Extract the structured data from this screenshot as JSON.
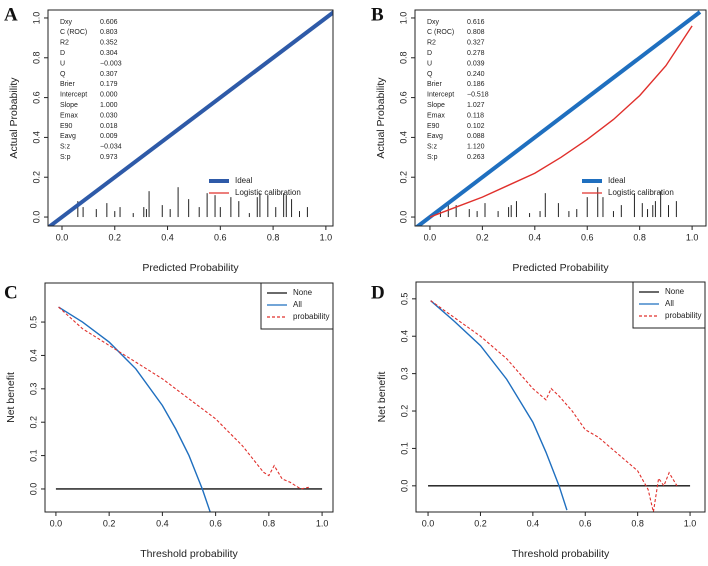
{
  "chart_data": [
    {
      "type": "calibration",
      "label": "A",
      "x_label": "Predicted Probability",
      "y_label": "Actual Probability",
      "xlim": [
        -0.053,
        1.027
      ],
      "ylim": [
        -0.045,
        1.04
      ],
      "xticks": [
        {
          "value": 0,
          "label": "0.0"
        },
        0.2,
        0.4,
        0.6,
        0.8,
        {
          "value": 1,
          "label": "1.0"
        }
      ],
      "yticks": [
        {
          "value": 0,
          "label": "0.0"
        },
        0.2,
        0.4,
        0.6,
        0.8,
        {
          "value": 1,
          "label": "1.0"
        }
      ],
      "stats": {
        "labels": [
          "Dxy",
          "C (ROC)",
          "R2",
          "D",
          "U",
          "Q",
          "Brier",
          "Intercept",
          "Slope",
          "Emax",
          "E90",
          "Eavg",
          "S:z",
          "S:p"
        ],
        "values": [
          "0.606",
          "0.803",
          "0.352",
          "0.304",
          "−0.003",
          "0.307",
          "0.179",
          "0.000",
          "1.000",
          "0.030",
          "0.018",
          "0.009",
          "−0.034",
          "0.973"
        ]
      },
      "legend": "lower right",
      "legend_box": false,
      "series": [
        {
          "name": "Logistic calibration",
          "color": "#e0302c",
          "x": [
            -0.05,
            1.03
          ],
          "values": [
            -0.05,
            1.03
          ]
        },
        {
          "name": "Ideal",
          "color": "#2e5aa8",
          "x": [
            -0.05,
            1.03
          ],
          "values": [
            -0.05,
            1.03
          ]
        }
      ],
      "spikes": {
        "color": "#222",
        "x": [
          0.06,
          0.08,
          0.13,
          0.17,
          0.2,
          0.22,
          0.27,
          0.31,
          0.32,
          0.33,
          0.38,
          0.41,
          0.44,
          0.48,
          0.52,
          0.55,
          0.58,
          0.6,
          0.64,
          0.67,
          0.71,
          0.74,
          0.75,
          0.78,
          0.81,
          0.84,
          0.85,
          0.87,
          0.9,
          0.93
        ],
        "values": [
          0.08,
          0.05,
          0.04,
          0.07,
          0.03,
          0.05,
          0.02,
          0.05,
          0.04,
          0.13,
          0.06,
          0.04,
          0.15,
          0.09,
          0.05,
          0.12,
          0.11,
          0.05,
          0.1,
          0.08,
          0.02,
          0.1,
          0.12,
          0.11,
          0.05,
          0.12,
          0.11,
          0.09,
          0.03,
          0.05
        ]
      }
    },
    {
      "type": "calibration",
      "label": "B",
      "x_label": "Predicted Probability",
      "y_label": "Actual Probability",
      "xlim": [
        -0.057,
        1.053
      ],
      "ylim": [
        -0.045,
        1.04
      ],
      "xticks": [
        {
          "value": 0,
          "label": "0.0"
        },
        0.2,
        0.4,
        0.6,
        0.8,
        {
          "value": 1,
          "label": "1.0"
        }
      ],
      "yticks": [
        {
          "value": 0,
          "label": "0.0"
        },
        0.2,
        0.4,
        0.6,
        0.8,
        {
          "value": 1,
          "label": "1.0"
        }
      ],
      "stats": {
        "labels": [
          "Dxy",
          "C (ROC)",
          "R2",
          "D",
          "U",
          "Q",
          "Brier",
          "Intercept",
          "Slope",
          "Emax",
          "E90",
          "Eavg",
          "S:z",
          "S:p"
        ],
        "values": [
          "0.616",
          "0.808",
          "0.327",
          "0.278",
          "0.039",
          "0.240",
          "0.186",
          "−0.518",
          "1.027",
          "0.118",
          "0.102",
          "0.088",
          "1.120",
          "0.263"
        ]
      },
      "legend": "lower right",
      "legend_box": false,
      "series": [
        {
          "name": "Ideal",
          "color": "#1f6fbf",
          "x": [
            -0.05,
            1.03
          ],
          "values": [
            -0.05,
            1.03
          ]
        },
        {
          "name": "Logistic calibration",
          "color": "#e0302c",
          "x": [
            0,
            0.1,
            0.2,
            0.3,
            0.4,
            0.5,
            0.6,
            0.7,
            0.8,
            0.9,
            1.0
          ],
          "values": [
            0.0,
            0.05,
            0.1,
            0.16,
            0.22,
            0.3,
            0.39,
            0.49,
            0.61,
            0.76,
            0.96
          ]
        }
      ],
      "spikes": {
        "color": "#222",
        "x": [
          0.04,
          0.07,
          0.1,
          0.15,
          0.18,
          0.21,
          0.26,
          0.3,
          0.31,
          0.33,
          0.38,
          0.42,
          0.44,
          0.49,
          0.53,
          0.56,
          0.6,
          0.64,
          0.66,
          0.7,
          0.73,
          0.78,
          0.81,
          0.83,
          0.85,
          0.86,
          0.88,
          0.91,
          0.94
        ],
        "values": [
          0.03,
          0.06,
          0.06,
          0.04,
          0.03,
          0.07,
          0.03,
          0.05,
          0.06,
          0.08,
          0.02,
          0.03,
          0.12,
          0.07,
          0.03,
          0.04,
          0.1,
          0.15,
          0.1,
          0.03,
          0.06,
          0.12,
          0.07,
          0.04,
          0.06,
          0.08,
          0.13,
          0.06,
          0.08
        ]
      }
    },
    {
      "type": "decision",
      "label": "C",
      "x_label": "Threshold probability",
      "y_label": "Net benefit",
      "xlim": [
        -0.041,
        1.041
      ],
      "ylim": [
        -0.069,
        0.617
      ],
      "xticks": [
        {
          "value": 0,
          "label": "0.0"
        },
        0.2,
        0.4,
        0.6,
        0.8,
        {
          "value": 1,
          "label": "1.0"
        }
      ],
      "yticks": [
        {
          "value": 0,
          "label": "0.0"
        },
        0.1,
        0.2,
        0.3,
        0.4,
        0.5
      ],
      "legend": "upper right",
      "legend_box": true,
      "series": [
        {
          "name": "None",
          "color": "#111",
          "x": [
            0,
            1
          ],
          "values": [
            0,
            0
          ]
        },
        {
          "name": "All",
          "color": "#1f6fbf",
          "x": [
            0.01,
            0.1,
            0.2,
            0.3,
            0.4,
            0.45,
            0.5,
            0.55,
            0.58
          ],
          "values": [
            0.545,
            0.5,
            0.44,
            0.36,
            0.25,
            0.18,
            0.1,
            0.0,
            -0.07
          ]
        },
        {
          "name": "probability",
          "color": "#e0302c",
          "dashed": true,
          "x": [
            0.01,
            0.1,
            0.2,
            0.3,
            0.4,
            0.5,
            0.6,
            0.65,
            0.7,
            0.75,
            0.78,
            0.8,
            0.82,
            0.85,
            0.88,
            0.9,
            0.92,
            0.95
          ],
          "values": [
            0.545,
            0.48,
            0.43,
            0.38,
            0.33,
            0.27,
            0.21,
            0.17,
            0.13,
            0.08,
            0.05,
            0.04,
            0.07,
            0.03,
            0.02,
            0.01,
            0.0,
            0.005
          ]
        }
      ]
    },
    {
      "type": "decision",
      "label": "D",
      "x_label": "Threshold probability",
      "y_label": "Net benefit",
      "xlim": [
        -0.046,
        1.057
      ],
      "ylim": [
        -0.07,
        0.545
      ],
      "xticks": [
        {
          "value": 0,
          "label": "0.0"
        },
        0.2,
        0.4,
        0.6,
        0.8,
        {
          "value": 1,
          "label": "1.0"
        }
      ],
      "yticks": [
        {
          "value": 0,
          "label": "0.0"
        },
        0.1,
        0.2,
        0.3,
        0.4,
        0.5
      ],
      "legend": "upper right",
      "legend_box": true,
      "series": [
        {
          "name": "None",
          "color": "#111",
          "x": [
            0,
            1
          ],
          "values": [
            0,
            0
          ]
        },
        {
          "name": "All",
          "color": "#1f6fbf",
          "x": [
            0.01,
            0.1,
            0.2,
            0.3,
            0.4,
            0.45,
            0.5,
            0.53
          ],
          "values": [
            0.495,
            0.44,
            0.375,
            0.285,
            0.17,
            0.09,
            0.0,
            -0.065
          ]
        },
        {
          "name": "probability",
          "color": "#e0302c",
          "dashed": true,
          "x": [
            0.01,
            0.1,
            0.2,
            0.3,
            0.35,
            0.4,
            0.45,
            0.47,
            0.5,
            0.55,
            0.6,
            0.65,
            0.7,
            0.75,
            0.8,
            0.84,
            0.86,
            0.88,
            0.9,
            0.92,
            0.95
          ],
          "values": [
            0.495,
            0.45,
            0.4,
            0.34,
            0.3,
            0.26,
            0.23,
            0.26,
            0.24,
            0.2,
            0.15,
            0.13,
            0.1,
            0.07,
            0.04,
            -0.01,
            -0.07,
            0.02,
            0.0,
            0.035,
            0.0
          ]
        }
      ]
    }
  ]
}
